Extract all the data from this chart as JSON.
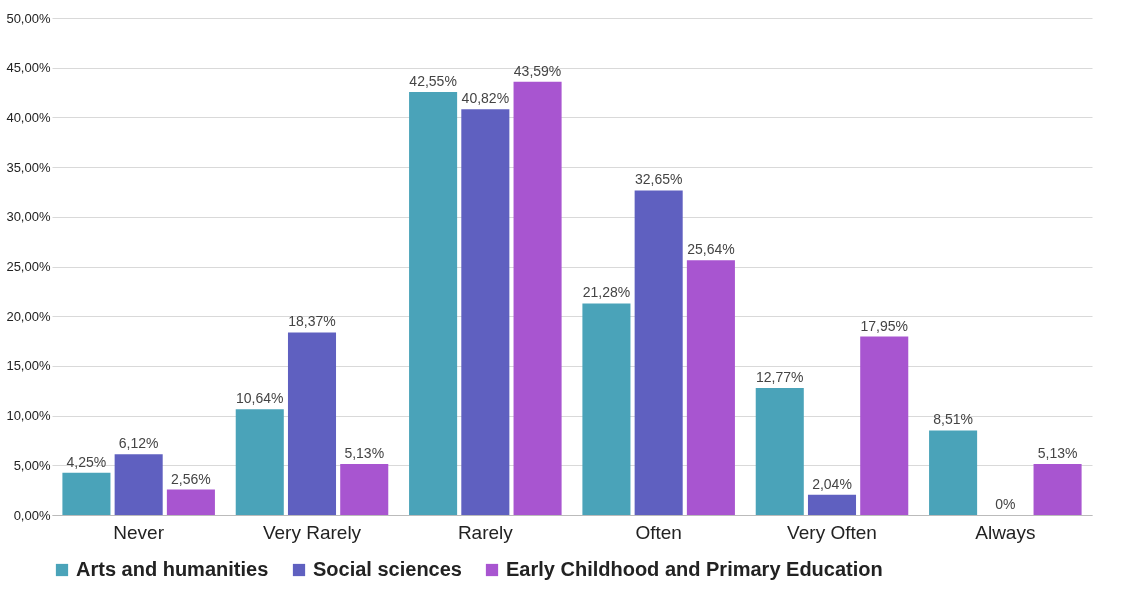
{
  "chart_data": {
    "type": "bar",
    "categories": [
      "Never",
      "Very Rarely",
      "Rarely",
      "Often",
      "Very Often",
      "Always"
    ],
    "series": [
      {
        "name": "Arts and humanities",
        "color": "#4aa3b9",
        "values": [
          4.25,
          10.64,
          42.55,
          21.28,
          12.77,
          8.51
        ],
        "value_labels": [
          "4,25%",
          "10,64%",
          "42,55%",
          "21,28%",
          "12,77%",
          "8,51%"
        ]
      },
      {
        "name": "Social sciences",
        "color": "#5f60c0",
        "values": [
          6.12,
          18.37,
          40.82,
          32.65,
          2.04,
          0
        ],
        "value_labels": [
          "6,12%",
          "18,37%",
          "40,82%",
          "32,65%",
          "2,04%",
          "0%"
        ]
      },
      {
        "name": "Early Childhood and Primary Education",
        "color": "#a855d0",
        "values": [
          2.56,
          5.13,
          43.59,
          25.64,
          17.95,
          5.13
        ],
        "value_labels": [
          "2,56%",
          "5,13%",
          "43,59%",
          "25,64%",
          "17,95%",
          "5,13%"
        ]
      }
    ],
    "ylim": [
      0,
      50
    ],
    "yticks": [
      {
        "value": 0,
        "label": "0,00%"
      },
      {
        "value": 5,
        "label": "5,00%"
      },
      {
        "value": 10,
        "label": "10,00%"
      },
      {
        "value": 15,
        "label": "15,00%"
      },
      {
        "value": 20,
        "label": "20,00%"
      },
      {
        "value": 25,
        "label": "25,00%"
      },
      {
        "value": 30,
        "label": "30,00%"
      },
      {
        "value": 35,
        "label": "35,00%"
      },
      {
        "value": 40,
        "label": "40,00%"
      },
      {
        "value": 45,
        "label": "45,00%"
      },
      {
        "value": 50,
        "label": "50,00%"
      }
    ],
    "grid": "y",
    "legend": "bottom"
  }
}
